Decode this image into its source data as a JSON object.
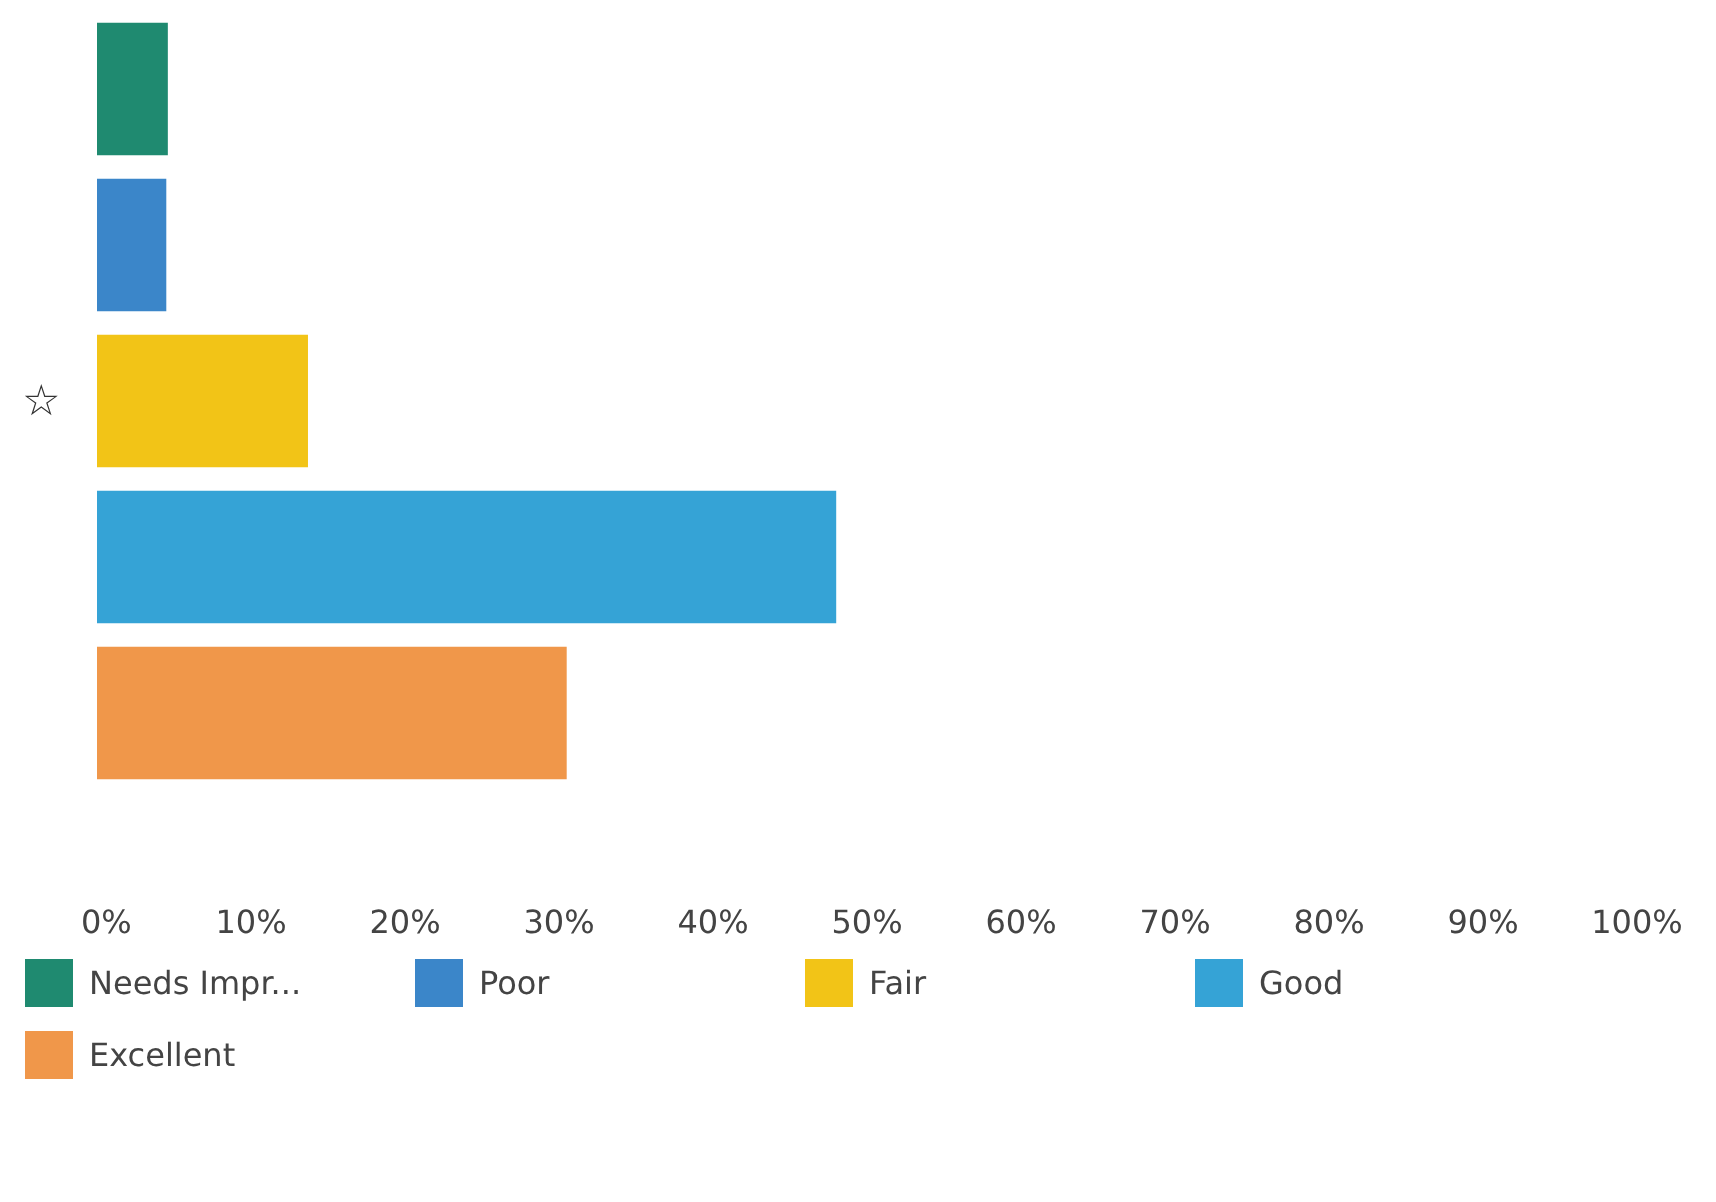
{
  "chart_data": {
    "type": "bar",
    "orientation": "horizontal",
    "categories": [
      null,
      null,
      null,
      null,
      null
    ],
    "series": [
      {
        "name": "Needs Impr...",
        "color": "#1f8a70",
        "values": [
          4.6,
          null,
          null,
          null,
          null
        ]
      },
      {
        "name": "Poor",
        "color": "#3b86c9",
        "values": [
          null,
          4.5,
          null,
          null,
          null
        ]
      },
      {
        "name": "Fair",
        "color": "#f2c417",
        "values": [
          null,
          null,
          13.7,
          null,
          null
        ]
      },
      {
        "name": "Good",
        "color": "#35a3d6",
        "values": [
          null,
          null,
          null,
          48,
          null
        ]
      },
      {
        "name": "Excellent",
        "color": "#f0974a",
        "values": [
          null,
          null,
          null,
          null,
          30.5
        ]
      }
    ],
    "xlim": [
      0,
      100
    ],
    "xticks": [
      {
        "value": 0,
        "label": "0%"
      },
      {
        "value": 10,
        "label": "10%"
      },
      {
        "value": 20,
        "label": "20%"
      },
      {
        "value": 30,
        "label": "30%"
      },
      {
        "value": 40,
        "label": "40%"
      },
      {
        "value": 50,
        "label": "50%"
      },
      {
        "value": 60,
        "label": "60%"
      },
      {
        "value": 70,
        "label": "70%"
      },
      {
        "value": 80,
        "label": "80%"
      },
      {
        "value": 90,
        "label": "90%"
      },
      {
        "value": 100,
        "label": "100%"
      }
    ],
    "annotations": [
      "☆"
    ],
    "stacked": true,
    "grid": false,
    "legend": "bottom",
    "tick_labels": "x"
  }
}
